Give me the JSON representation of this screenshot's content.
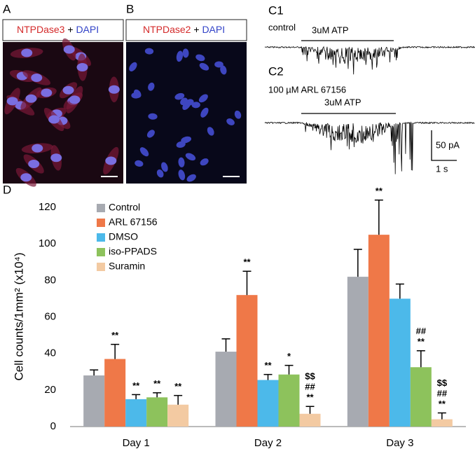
{
  "panels": {
    "A": {
      "label": "A",
      "stain": [
        "NTPDase3",
        "+",
        "DAPI"
      ]
    },
    "B": {
      "label": "B",
      "stain": [
        "NTPDase2",
        "+",
        "DAPI"
      ]
    },
    "C1": {
      "label": "C1",
      "condition": "control",
      "stimulus": "3uM ATP"
    },
    "C2": {
      "label": "C2",
      "condition": "100 µM ARL 67156",
      "stimulus": "3uM ATP"
    },
    "scale": {
      "current": "50 pA",
      "time": "1 s"
    },
    "D": {
      "label": "D"
    }
  },
  "chart_data": {
    "type": "bar",
    "y_label": "Cell counts/1mm² (x10⁴)",
    "categories": [
      "Day 1",
      "Day 2",
      "Day 3"
    ],
    "ylim": [
      0,
      120
    ],
    "yticks": [
      0,
      20,
      40,
      60,
      80,
      100,
      120
    ],
    "series": [
      {
        "name": "Control",
        "color": "#a7aab1",
        "values": [
          28,
          41,
          82
        ],
        "errors": [
          3,
          7,
          15
        ],
        "annotations": [
          null,
          null,
          null
        ]
      },
      {
        "name": "ARL 67156",
        "color": "#ef7848",
        "values": [
          37,
          72,
          105
        ],
        "errors": [
          8,
          13,
          19
        ],
        "annotations": [
          [
            "**"
          ],
          [
            "**"
          ],
          [
            "**"
          ]
        ]
      },
      {
        "name": "DMSO",
        "color": "#4cb9ea",
        "values": [
          15,
          25.5,
          70
        ],
        "errors": [
          2.5,
          3,
          8
        ],
        "annotations": [
          [
            "**"
          ],
          [
            "**"
          ],
          null
        ]
      },
      {
        "name": "iso-PPADS",
        "color": "#8dc25c",
        "values": [
          16,
          28.5,
          32.5
        ],
        "errors": [
          2.5,
          5,
          9
        ],
        "annotations": [
          [
            "**"
          ],
          [
            "*"
          ],
          [
            "##",
            "**"
          ]
        ]
      },
      {
        "name": "Suramin",
        "color": "#f3caa2",
        "values": [
          12,
          7,
          4
        ],
        "errors": [
          5,
          4,
          3.5
        ],
        "annotations": [
          [
            "**"
          ],
          [
            "$$",
            "##",
            "**"
          ],
          [
            "$$",
            "##",
            "**"
          ]
        ]
      }
    ]
  }
}
